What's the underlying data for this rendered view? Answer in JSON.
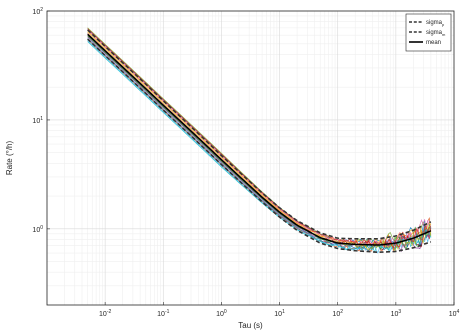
{
  "chart_data": {
    "type": "line",
    "title": "",
    "xlabel": "Tau (s)",
    "ylabel": "Rate (°/h)",
    "xscale": "log",
    "yscale": "log",
    "xlim": [
      0.001,
      10000
    ],
    "ylim": [
      0.2,
      100
    ],
    "grid": true,
    "minor_grid": true,
    "legend_location": "top-right",
    "x_ticks": [
      {
        "value": 0.01,
        "base": "10",
        "exp": "-2"
      },
      {
        "value": 0.1,
        "base": "10",
        "exp": "-1"
      },
      {
        "value": 1,
        "base": "10",
        "exp": "0"
      },
      {
        "value": 10,
        "base": "10",
        "exp": "1"
      },
      {
        "value": 100,
        "base": "10",
        "exp": "2"
      },
      {
        "value": 1000,
        "base": "10",
        "exp": "3"
      },
      {
        "value": 10000,
        "base": "10",
        "exp": "4"
      }
    ],
    "y_ticks": [
      {
        "value": 1,
        "base": "10",
        "exp": "0"
      },
      {
        "value": 10,
        "base": "10",
        "exp": "1"
      },
      {
        "value": 100,
        "base": "10",
        "exp": "2"
      }
    ],
    "mean": {
      "x": [
        0.005,
        0.01,
        0.02,
        0.05,
        0.1,
        0.2,
        0.5,
        1,
        2,
        5,
        10,
        20,
        50,
        100,
        200,
        500,
        1000,
        2000,
        4000
      ],
      "y": [
        61,
        43,
        30.5,
        19.3,
        13.6,
        9.65,
        6.1,
        4.3,
        3.05,
        1.95,
        1.42,
        1.08,
        0.83,
        0.74,
        0.72,
        0.71,
        0.74,
        0.82,
        0.96
      ]
    },
    "series": [
      {
        "name": "sigma",
        "subscript": "p",
        "style": "dashed",
        "color": "#333333",
        "y": [
          67,
          47.3,
          33.5,
          21.3,
          15.0,
          10.6,
          6.7,
          4.7,
          3.35,
          2.14,
          1.56,
          1.19,
          0.92,
          0.82,
          0.81,
          0.81,
          0.86,
          0.97,
          1.16
        ]
      },
      {
        "name": "sigma",
        "subscript": "m",
        "style": "dashed",
        "color": "#333333",
        "y": [
          55.3,
          39.0,
          27.7,
          17.5,
          12.3,
          8.75,
          5.53,
          3.9,
          2.77,
          1.77,
          1.28,
          0.97,
          0.74,
          0.66,
          0.63,
          0.61,
          0.62,
          0.67,
          0.76
        ]
      },
      {
        "name": "mean",
        "style": "solid",
        "color": "#000000",
        "y_ref": "mean"
      }
    ],
    "runs": {
      "count": 14,
      "colors": [
        "#0072bd",
        "#d95319",
        "#edb120",
        "#7e2f8e",
        "#77ac30",
        "#4dbeee",
        "#a2142f",
        "#2ca02c",
        "#ff7f0e",
        "#1f77b4",
        "#e377c2",
        "#17becf",
        "#bcbd22",
        "#d62728"
      ],
      "scale_factors": [
        1.12,
        0.9,
        1.05,
        0.95,
        1.15,
        0.88,
        1.02,
        0.97,
        1.08,
        0.92,
        1.1,
        0.86,
        1.0,
        1.13
      ],
      "noise_amplitude": 0.38,
      "noise_onset_tau": 10
    }
  }
}
